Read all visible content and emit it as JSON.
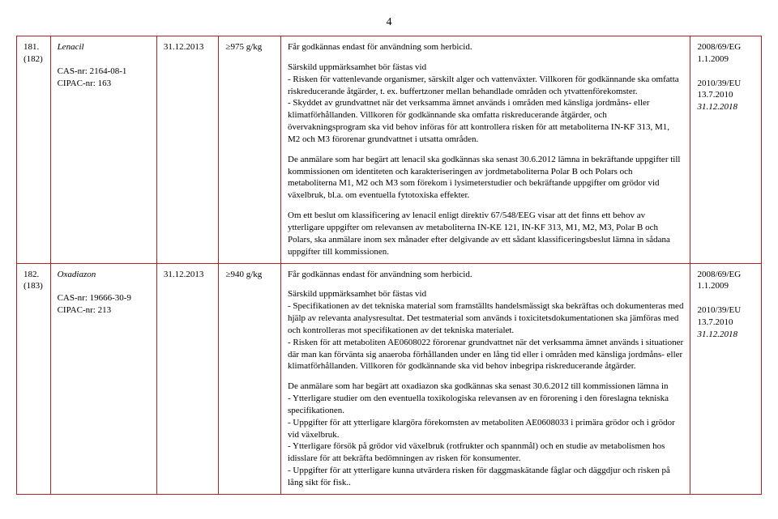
{
  "page_number": "4",
  "rows": [
    {
      "num": "181.\n(182)",
      "substance": "Lenacil",
      "cas_label": "CAS-nr: 2164-08-1",
      "cipac_label": "CIPAC-nr: 163",
      "date": "31.12.2013",
      "amount": "≥975 g/kg",
      "provisions": [
        "Får godkännas endast för användning som herbicid.",
        "Särskild uppmärksamhet bör fästas vid\n- Risken för vattenlevande organismer, särskilt alger och vattenväxter. Villkoren för godkännande ska omfatta riskreducerande åtgärder, t. ex. buffertzoner mellan behandlade områden och ytvattenförekomster.\n- Skyddet av grundvattnet när det verksamma ämnet används i områden med känsliga jordmåns- eller klimatförhållanden. Villkoren för godkännande ska omfatta riskreducerande åtgärder, och övervakningsprogram ska vid behov införas för att kontrollera risken för att metaboliterna IN-KF 313, M1, M2 och M3 förorenar grundvattnet i utsatta områden.",
        "De anmälare som har begärt att lenacil ska godkännas ska senast 30.6.2012 lämna in bekräftande uppgifter till kommissionen om identiteten och karakteriseringen av jordmetaboliterna Polar B och Polars och metaboliterna M1, M2 och M3 som förekom i lysimeterstudier och bekräftande uppgifter om grödor vid växelbruk, bl.a. om eventuella fytotoxiska effekter.",
        "Om ett beslut om klassificering av lenacil enligt direktiv 67/548/EEG visar att det finns ett behov av ytterligare uppgifter om relevansen av metaboliterna IN-KE 121, IN-KF 313, M1, M2, M3, Polar B och Polars, ska anmälare inom sex månader efter delgivande av ett sådant klassificeringsbeslut lämna in sådana uppgifter till kommissionen."
      ],
      "refs": {
        "l1": "2008/69/EG",
        "l2": "1.1.2009",
        "l3": "2010/39/EU",
        "l4": "13.7.2010",
        "l5": "31.12.2018"
      }
    },
    {
      "num": "182.\n(183)",
      "substance": "Oxadiazon",
      "cas_label": "CAS-nr: 19666-30-9",
      "cipac_label": "CIPAC-nr: 213",
      "date": "31.12.2013",
      "amount": "≥940 g/kg",
      "provisions": [
        "Får godkännas endast för användning som herbicid.",
        "Särskild uppmärksamhet bör fästas vid\n- Specifikationen av det tekniska material som framställts handelsmässigt ska bekräftas och dokumenteras med hjälp av relevanta analysresultat. Det testmaterial som används i toxicitetsdokumentationen ska jämföras med och kontrolleras mot specifikationen av det tekniska materialet.\n- Risken för att metaboliten AE0608022 förorenar grundvattnet när det verksamma ämnet används i situationer där man kan förvänta sig anaeroba förhållanden under en lång tid eller i områden med känsliga jordmåns- eller klimatförhållanden. Villkoren för godkännande ska vid behov inbegripa riskreducerande åtgärder.",
        "De anmälare som har begärt att oxadiazon ska godkännas ska senast 30.6.2012 till kommissionen lämna in\n- Ytterligare studier om den eventuella toxikologiska relevansen av en förorening i den föreslagna tekniska specifikationen.\n- Uppgifter för att ytterligare klargöra förekomsten av metaboliten AE0608033 i primära grödor och i grödor vid växelbruk.\n- Ytterligare försök på grödor vid växelbruk (rotfrukter och spannmål) och en studie av metabolismen hos idisslare för att bekräfta bedömningen av risken för konsumenter.\n- Uppgifter för att ytterligare kunna utvärdera risken för daggmaskätande fåglar och däggdjur och risken på lång sikt för fisk.."
      ],
      "refs": {
        "l1": "2008/69/EG",
        "l2": "1.1.2009",
        "l3": "2010/39/EU",
        "l4": "13.7.2010",
        "l5": "31.12.2018"
      }
    }
  ]
}
